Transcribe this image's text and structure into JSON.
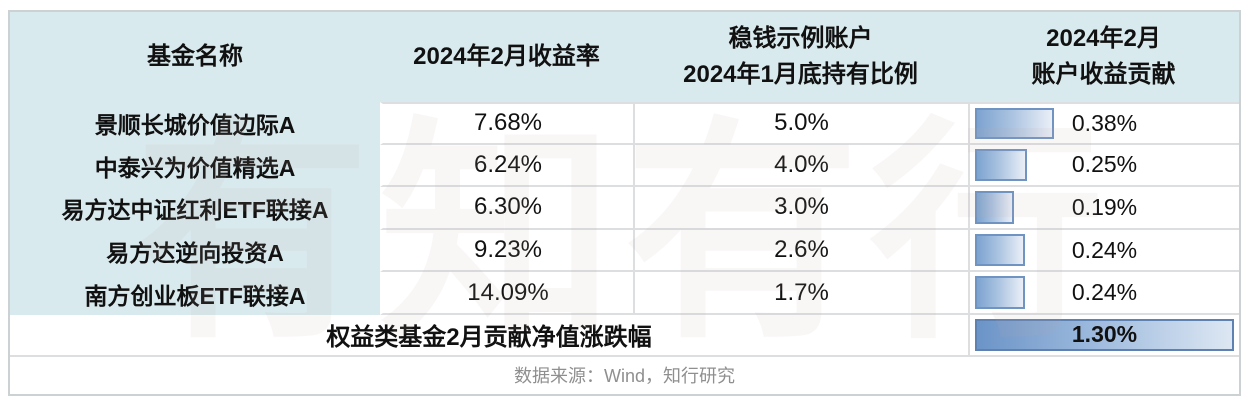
{
  "table": {
    "headers": {
      "fund_name": "基金名称",
      "feb_return": "2024年2月收益率",
      "holding_line1": "稳钱示例账户",
      "holding_line2": "2024年1月底持有比例",
      "contribution_line1": "2024年2月",
      "contribution_line2": "账户收益贡献"
    },
    "rows": [
      {
        "name": "景顺长城价值边际A",
        "feb_return": "7.68%",
        "holding": "5.0%",
        "contribution": "0.38%",
        "bar_pct": 29.2
      },
      {
        "name": "中泰兴为价值精选A",
        "feb_return": "6.24%",
        "holding": "4.0%",
        "contribution": "0.25%",
        "bar_pct": 19.2
      },
      {
        "name": "易方达中证红利ETF联接A",
        "feb_return": "6.30%",
        "holding": "3.0%",
        "contribution": "0.19%",
        "bar_pct": 14.6
      },
      {
        "name": "易方达逆向投资A",
        "feb_return": "9.23%",
        "holding": "2.6%",
        "contribution": "0.24%",
        "bar_pct": 18.5
      },
      {
        "name": "南方创业板ETF联接A",
        "feb_return": "14.09%",
        "holding": "1.7%",
        "contribution": "0.24%",
        "bar_pct": 18.5
      }
    ],
    "footer": {
      "label": "权益类基金2月贡献净值涨跌幅",
      "total_contribution": "1.30%",
      "bar_pct": 100
    }
  },
  "source_note": "数据来源：Wind，知行研究",
  "watermark_text": "有知有行",
  "colors": {
    "header_bg": "#d9eaee",
    "grid_line": "#dcdee0",
    "outer_border": "#ccd1d4",
    "bar_border": "#6f94c2",
    "bar_gradient_start": "#7ca3d0",
    "bar_gradient_end": "#eaeff7",
    "footer_bar_border": "#5d82b1",
    "footer_bar_gradient_start": "#6b94c7",
    "footer_bar_gradient_end": "#dde7f3",
    "source_text": "#8f8f8f"
  },
  "chart_data": {
    "type": "table",
    "columns": [
      "基金名称",
      "2024年2月收益率",
      "稳钱示例账户2024年1月底持有比例",
      "2024年2月账户收益贡献"
    ],
    "rows": [
      [
        "景顺长城价值边际A",
        7.68,
        5.0,
        0.38
      ],
      [
        "中泰兴为价值精选A",
        6.24,
        4.0,
        0.25
      ],
      [
        "易方达中证红利ETF联接A",
        6.3,
        3.0,
        0.19
      ],
      [
        "易方达逆向投资A",
        9.23,
        2.6,
        0.24
      ],
      [
        "南方创业板ETF联接A",
        14.09,
        1.7,
        0.24
      ]
    ],
    "summary_row": {
      "label": "权益类基金2月贡献净值涨跌幅",
      "value": 1.3
    },
    "databar_column": "2024年2月账户收益贡献",
    "databar_max": 1.3,
    "units": "percent",
    "source": "数据来源：Wind，知行研究"
  }
}
